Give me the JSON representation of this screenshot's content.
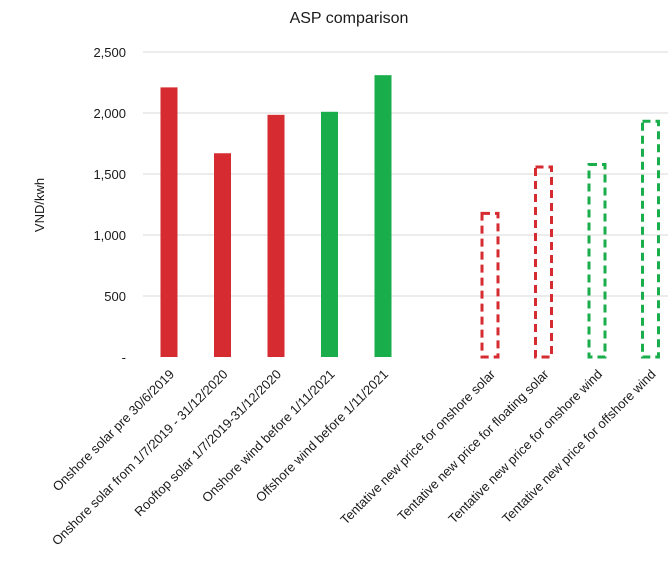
{
  "chart_data": {
    "type": "bar",
    "title": "ASP comparison",
    "xlabel": "",
    "ylabel": "VND/kwh",
    "ylim": [
      0,
      2500
    ],
    "yticks": [
      {
        "value": 0,
        "label": "-"
      },
      {
        "value": 500,
        "label": "500"
      },
      {
        "value": 1000,
        "label": "1,000"
      },
      {
        "value": 1500,
        "label": "1,500"
      },
      {
        "value": 2000,
        "label": "2,000"
      },
      {
        "value": 2500,
        "label": "2,500"
      }
    ],
    "grid": true,
    "legend": "none",
    "categories": [
      "Onshore solar pre 30/6/2019",
      "Onshore solar from 1/7/2019 - 31/12/2020",
      "Rooftop solar 1/7/2019-31/12/2020",
      "Onshore wind before 1/11/2021",
      "Offshore wind before 1/11/2021",
      "",
      "Tentative new price for onshore solar",
      "Tentative new price for floating solar",
      "Tentative new price for onshore wind",
      "Tentative new price for offshore wind"
    ],
    "values": [
      2210,
      1670,
      1985,
      2010,
      2310,
      null,
      1190,
      1570,
      1590,
      1945
    ],
    "styles": [
      "solid",
      "solid",
      "solid",
      "solid",
      "solid",
      "none",
      "dashed",
      "dashed",
      "dashed",
      "dashed"
    ],
    "colors": [
      "#d62b30",
      "#d62b30",
      "#d62b30",
      "#1aad4b",
      "#1aad4b",
      null,
      "#d62b30",
      "#d62b30",
      "#1aad4b",
      "#1aad4b"
    ]
  }
}
